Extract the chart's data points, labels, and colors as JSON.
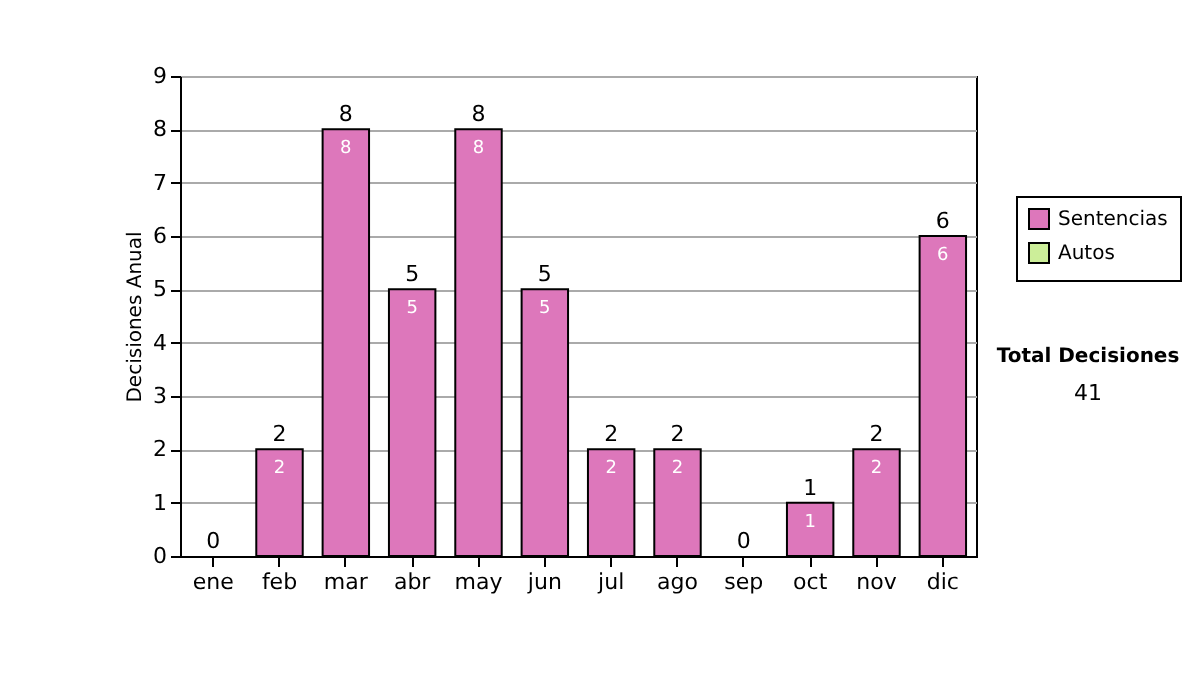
{
  "chart_data": {
    "type": "bar",
    "ylabel": "Decisiones Anual",
    "categories": [
      "ene",
      "feb",
      "mar",
      "abr",
      "may",
      "jun",
      "jul",
      "ago",
      "sep",
      "oct",
      "nov",
      "dic"
    ],
    "series": [
      {
        "name": "Sentencias",
        "color": "#dd77bb",
        "values": [
          0,
          2,
          8,
          5,
          8,
          5,
          2,
          2,
          0,
          1,
          2,
          6
        ],
        "value_labels": [
          null,
          "2",
          "8",
          "5",
          "8",
          "5",
          "2",
          "2",
          null,
          "1",
          "2",
          "6"
        ]
      },
      {
        "name": "Autos",
        "color": "#ccee99",
        "values": [
          0,
          0,
          0,
          0,
          0,
          0,
          0,
          0,
          0,
          0,
          0,
          0
        ]
      }
    ],
    "totals": [
      "0",
      "2",
      "8",
      "5",
      "8",
      "5",
      "2",
      "2",
      "0",
      "1",
      "2",
      "6"
    ],
    "ylim": [
      0,
      9
    ],
    "yticks": [
      0,
      1,
      2,
      3,
      4,
      5,
      6,
      7,
      8,
      9
    ],
    "grid": "y",
    "legend": "right",
    "annotations": [
      "Total Decisiones",
      "41"
    ]
  }
}
